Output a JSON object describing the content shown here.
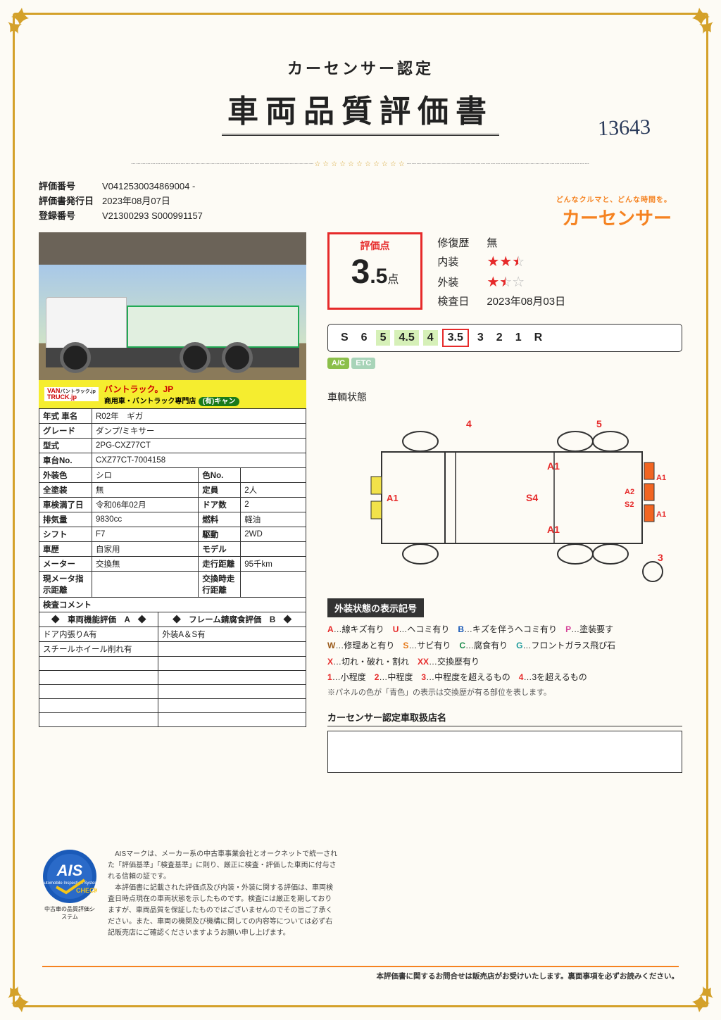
{
  "header": {
    "subtitle": "カーセンサー認定",
    "title": "車両品質評価書",
    "handwritten": "13643"
  },
  "meta": {
    "eval_no_label": "評価番号",
    "eval_no": "V0412530034869004 -",
    "issue_label": "評価書発行日",
    "issue_date": "2023年08月07日",
    "reg_label": "登録番号",
    "reg_no": "V21300293 S000991157"
  },
  "brand": {
    "tagline": "どんなクルマと、どんな時間を。",
    "logo": "カーセンサー"
  },
  "banner": {
    "logo1": "VAN",
    "logo2": "TRUCK.jp",
    "sub": "バントラック.jp",
    "text1": "バントラック。JP",
    "text2": "商用車・バントラック専門店",
    "pill": "(有)キャン"
  },
  "spec": {
    "rows": [
      [
        "年式 車名",
        "R02年　ギガ",
        "",
        ""
      ],
      [
        "グレード",
        "ダンプ/ミキサー",
        "",
        ""
      ],
      [
        "型式",
        "2PG-CXZ77CT",
        "",
        ""
      ],
      [
        "車台No.",
        "CXZ77CT-7004158",
        "",
        ""
      ],
      [
        "外装色",
        "シロ",
        "色No.",
        ""
      ],
      [
        "全塗装",
        "無",
        "定員",
        "2人"
      ],
      [
        "車検満了日",
        "令和06年02月",
        "ドア数",
        "2"
      ],
      [
        "排気量",
        "9830cc",
        "燃料",
        "軽油"
      ],
      [
        "シフト",
        "F7",
        "駆動",
        "2WD"
      ],
      [
        "車歴",
        "自家用",
        "モデル",
        ""
      ],
      [
        "メーター",
        "交換無",
        "走行距離",
        "95千km"
      ],
      [
        "現メータ指示距離",
        "",
        "交換時走行距離",
        ""
      ]
    ],
    "comment_header": "検査コメント",
    "comment_cols": [
      "◆　車両機能評価　A　◆",
      "◆　フレーム錆腐食評価　B　◆"
    ],
    "comment_rows": [
      [
        "ドア内張りA有",
        "外装A＆S有"
      ],
      [
        "スチールホイール削れ有",
        ""
      ],
      [
        "",
        ""
      ],
      [
        "",
        ""
      ],
      [
        "",
        ""
      ],
      [
        "",
        ""
      ],
      [
        "",
        ""
      ]
    ]
  },
  "score": {
    "label": "評価点",
    "value_int": "3",
    "value_dec": ".5",
    "unit": "点",
    "repair_label": "修復歴",
    "repair": "無",
    "interior_label": "内装",
    "interior_stars": [
      1,
      1,
      0.5
    ],
    "exterior_label": "外装",
    "exterior_stars": [
      1,
      0.5,
      0
    ],
    "inspect_label": "検査日",
    "inspect_date": "2023年08月03日"
  },
  "scale": [
    "S",
    "6",
    "5",
    "4.5",
    "4",
    "3.5",
    "3",
    "2",
    "1",
    "R"
  ],
  "scale_highlight": [
    "5",
    "4.5",
    "4"
  ],
  "scale_selected": "3.5",
  "badges": {
    "ac": "A/C",
    "etc": "ETC"
  },
  "diagram": {
    "title": "車輌状態",
    "marks": {
      "a1": "A1",
      "s4": "S4",
      "a2": "A2",
      "s2": "S2"
    },
    "nums": {
      "n3": "3",
      "n4": "4",
      "n5": "5"
    }
  },
  "legend": {
    "title": "外装状態の表示記号",
    "lines": [
      [
        [
          "r",
          "A"
        ],
        "…線キズ有り　",
        [
          "r",
          "U"
        ],
        "…ヘコミ有り　",
        [
          "bl",
          "B"
        ],
        "…キズを伴うヘコミ有り　",
        [
          "pk",
          "P"
        ],
        "…塗装要す"
      ],
      [
        [
          "br",
          "W"
        ],
        "…修理あと有り　",
        [
          "or",
          "S"
        ],
        "…サビ有り　",
        [
          "gr",
          "C"
        ],
        "…腐食有り　",
        [
          "cy",
          "G"
        ],
        "…フロントガラス飛び石"
      ],
      [
        [
          "r",
          "X"
        ],
        "…切れ・破れ・割れ　",
        [
          "r",
          "XX"
        ],
        "…交換歴有り"
      ],
      [
        [
          "r",
          "1"
        ],
        "…小程度　",
        [
          "r",
          "2"
        ],
        "…中程度　",
        [
          "r",
          "3"
        ],
        "…中程度を超えるもの　",
        [
          "r",
          "4"
        ],
        "…3を超えるもの"
      ]
    ],
    "note": "※パネルの色が「青色」の表示は交換歴が有る部位を表します。"
  },
  "dealer": {
    "title": "カーセンサー認定車取扱店名"
  },
  "ais": {
    "badge_text": "AIS",
    "badge_sub": "CHECK",
    "caption": "中古車の品質評価システム",
    "text": "　AISマークは、メーカー系の中古車事業会社とオークネットで統一された「評価基準」「検査基準」に則り、厳正に検査・評価した車両に付与される信頼の証です。\n　本評価書に記載された評価点及び内装・外装に関する評価は、車両検査日時点現在の車両状態を示したものです。検査には厳正を期しておりますが、車両品質を保証したものではございませんのでその旨ご了承ください。また、車両の機関及び機構に関しての内容等については必ず右記販売店にご確認くださいますようお願い申し上げます。"
  },
  "footer": "本評価書に関するお問合せは販売店がお受けいたします。裏面事項を必ずお読みください。"
}
